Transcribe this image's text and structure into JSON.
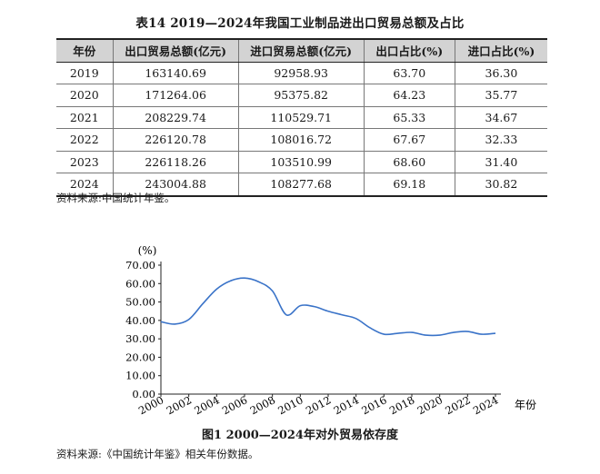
{
  "table": {
    "title": "表14  2019—2024年我国工业制品进出口贸易总额及占比",
    "headers": [
      "年份",
      "出口贸易总额(亿元)",
      "进口贸易总额(亿元)",
      "出口占比(%)",
      "进口占比(%)"
    ],
    "rows": [
      [
        "2019",
        "163140.69",
        "92958.93",
        "63.70",
        "36.30"
      ],
      [
        "2020",
        "171264.06",
        "95375.82",
        "64.23",
        "35.77"
      ],
      [
        "2021",
        "208229.74",
        "110529.71",
        "65.33",
        "34.67"
      ],
      [
        "2022",
        "226120.78",
        "108016.72",
        "67.67",
        "32.33"
      ],
      [
        "2023",
        "226118.26",
        "103510.99",
        "68.60",
        "31.40"
      ],
      [
        "2024",
        "243004.88",
        "108277.68",
        "69.18",
        "30.82"
      ]
    ],
    "source": "资料来源:中国统计年鉴。"
  },
  "figure": {
    "caption": "图1  2000—2024年对外贸易依存度",
    "source": "资料来源:《中国统计年鉴》相关年份数据。"
  },
  "chart_data": {
    "type": "line",
    "title": "",
    "xlabel": "年份",
    "ylabel": "(%)",
    "xlim": [
      2000,
      2024
    ],
    "ylim": [
      0,
      70
    ],
    "x_ticks": [
      "2000",
      "2002",
      "2004",
      "2006",
      "2008",
      "2010",
      "2012",
      "2014",
      "2016",
      "2018",
      "2020",
      "2022",
      "2024"
    ],
    "y_ticks": [
      "0.00",
      "10.00",
      "20.00",
      "30.00",
      "40.00",
      "50.00",
      "60.00",
      "70.00"
    ],
    "grid": false,
    "colors": {
      "line": "#3a73c8"
    },
    "x": [
      2000,
      2001,
      2002,
      2003,
      2004,
      2005,
      2006,
      2007,
      2008,
      2009,
      2010,
      2011,
      2012,
      2013,
      2014,
      2015,
      2016,
      2017,
      2018,
      2019,
      2020,
      2021,
      2022,
      2023,
      2024
    ],
    "series": [
      {
        "values": [
          39.3,
          38.0,
          40.5,
          49.0,
          57.0,
          61.5,
          63.0,
          61.0,
          56.0,
          43.0,
          48.0,
          47.5,
          45.0,
          43.0,
          41.0,
          36.0,
          32.5,
          33.0,
          33.5,
          32.0,
          32.0,
          33.5,
          34.0,
          32.5,
          33.0
        ]
      }
    ]
  }
}
